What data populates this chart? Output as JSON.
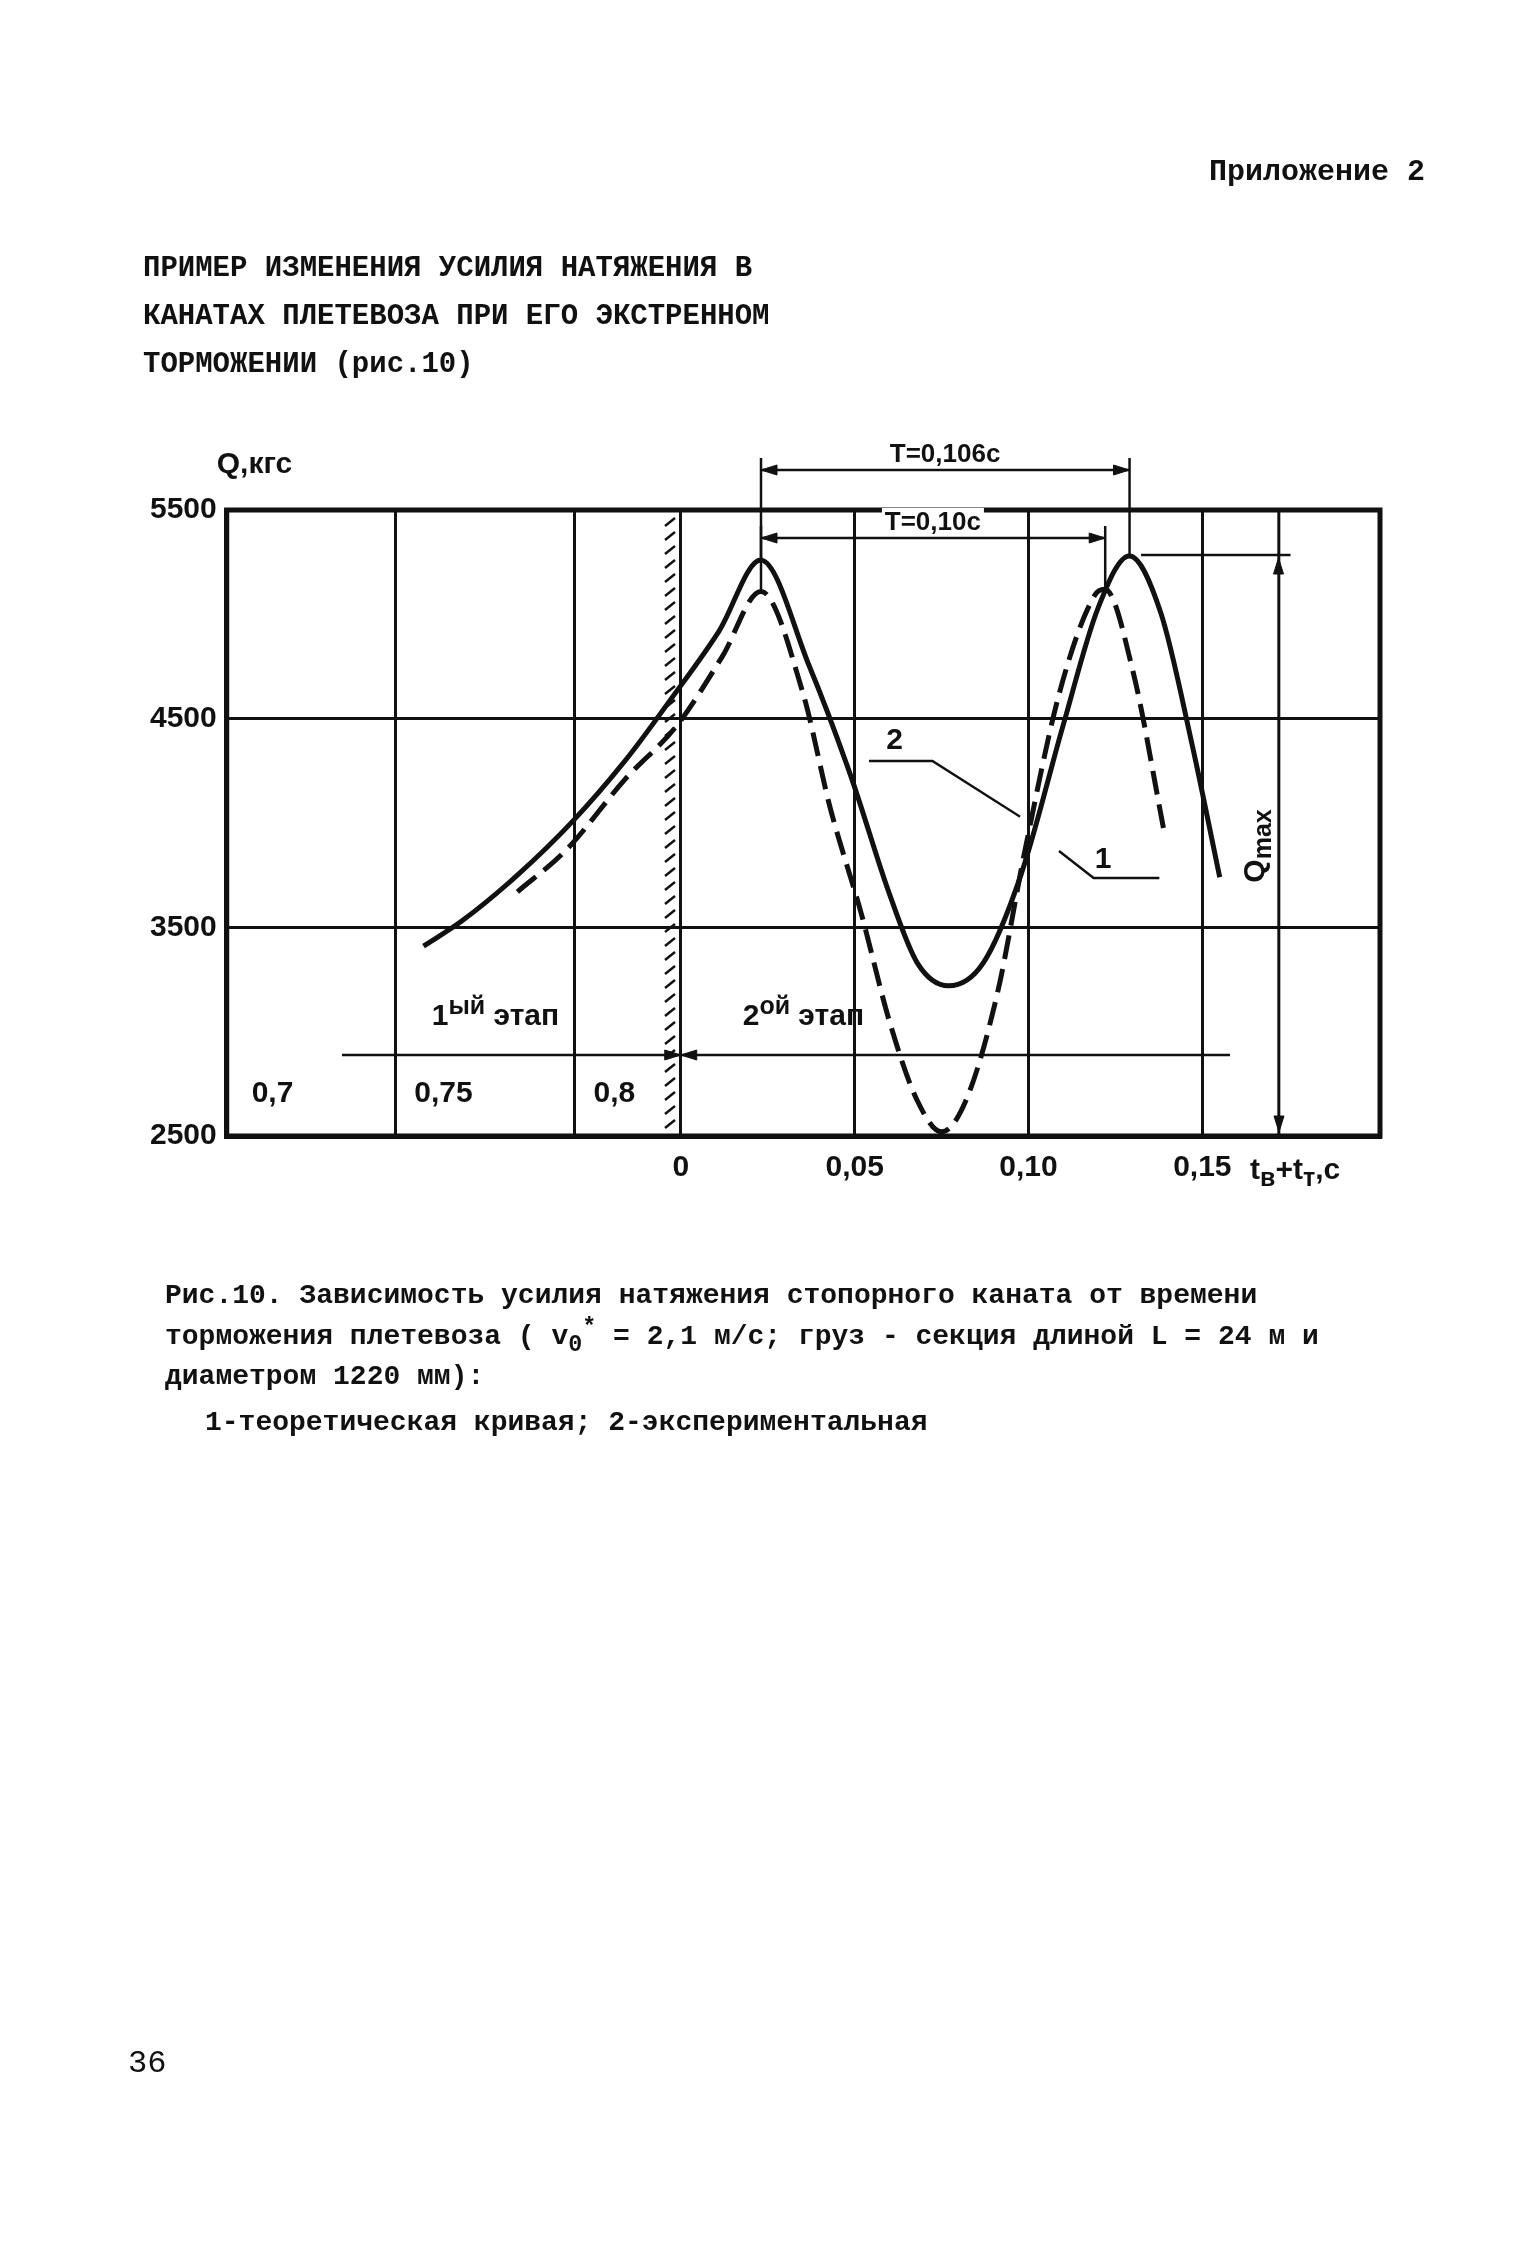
{
  "chart_data": {
    "type": "line",
    "title": "ПРИМЕР ИЗМЕНЕНИЯ УСИЛИЯ НАТЯЖЕНИЯ В КАНАТАХ ПЛЕТЕВОЗА ПРИ ЕГО ЭКСТРЕННОМ ТОРМОЖЕНИИ (рис.10)",
    "xlabel": "t$_{в}$+t$_{т}$,с",
    "ylabel": "Q,кгс",
    "annotations": [
      "Приложение 2",
      "Т=0,106с",
      "Т=0,10с",
      "2",
      "1",
      "1$^{ый}$ этап",
      "2$^{ой}$ этап",
      "Рис.10. Зависимость усилия натяжения стопорного каната от времени торможения плетевоза ( v$_{0}$$^{*}$ = 2,1 м/с; груз - секция длиной L = 24 м и диаметром 1220 мм):",
      "1-теоретическая кривая; 2-экспериментальная",
      "36"
    ],
    "series": [
      {
        "color": "#111111",
        "line_style": "solid",
        "x": [
          -0.074,
          -0.063,
          -0.047,
          -0.031,
          -0.015,
          -0.003,
          0.011,
          0.023,
          0.037,
          0.049,
          0.06,
          0.068,
          0.077,
          0.087,
          0.098,
          0.11,
          0.12,
          0.129,
          0.138,
          0.147,
          0.155
        ],
        "values": [
          3410,
          3530,
          3750,
          4010,
          4320,
          4590,
          4920,
          5260,
          4750,
          4220,
          3660,
          3330,
          3220,
          3330,
          3760,
          4470,
          5030,
          5280,
          5010,
          4380,
          3740
        ]
      },
      {
        "color": "#111111",
        "line_style": "dashed",
        "x": [
          -0.047,
          -0.033,
          -0.016,
          -0.001,
          0.012,
          0.023,
          0.035,
          0.043,
          0.052,
          0.06,
          0.068,
          0.075,
          0.082,
          0.091,
          0.099,
          0.109,
          0.119,
          0.122,
          0.13,
          0.139
        ],
        "values": [
          3670,
          3870,
          4210,
          4470,
          4800,
          5110,
          4630,
          4070,
          3560,
          3050,
          2670,
          2520,
          2670,
          3180,
          3870,
          4630,
          5090,
          5120,
          4730,
          3960
        ]
      }
    ],
    "xlim": [
      -0.1306,
      0.2011
    ],
    "xticks": [
      {
        "value": -0.082,
        "label": null
      },
      {
        "value": -0.0306,
        "label": null
      },
      {
        "value": 0,
        "label": "0"
      },
      {
        "value": 0.05,
        "label": "0,05"
      },
      {
        "value": 0.1,
        "label": "0,10"
      },
      {
        "value": 0.15,
        "label": "0,15"
      }
    ],
    "x2lim": [
      0.6866,
      1.024
    ],
    "x2ticks": [
      {
        "value": 0.7,
        "label": "0,7"
      },
      {
        "value": 0.75,
        "label": "0,75"
      },
      {
        "value": 0.8,
        "label": "0,8"
      }
    ],
    "ylim": [
      2500,
      5500
    ],
    "yticks": [
      2500,
      3500,
      4500,
      5500
    ],
    "ref_lines": [
      {
        "axis": "x",
        "value": 0.172,
        "label": "Q$_{max}$",
        "line_style": "solid"
      }
    ],
    "grid": true,
    "legend": false,
    "marker": "none"
  }
}
